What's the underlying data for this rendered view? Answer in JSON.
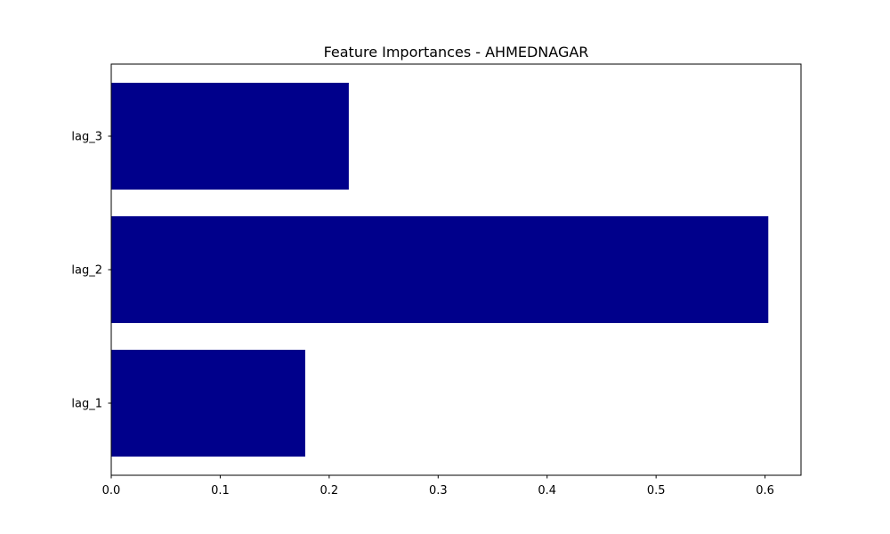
{
  "chart_data": {
    "type": "bar",
    "orientation": "horizontal",
    "title": "Feature Importances - AHMEDNAGAR",
    "categories": [
      "lag_1",
      "lag_2",
      "lag_3"
    ],
    "values": [
      0.178,
      0.603,
      0.218
    ],
    "xlabel": "",
    "ylabel": "",
    "xlim": [
      0,
      0.633
    ],
    "x_ticks": [
      0.0,
      0.1,
      0.2,
      0.3,
      0.4,
      0.5,
      0.6
    ],
    "x_tick_labels": [
      "0.0",
      "0.1",
      "0.2",
      "0.3",
      "0.4",
      "0.5",
      "0.6"
    ],
    "grid": false,
    "legend": "none",
    "bar_color": "#00008b"
  }
}
